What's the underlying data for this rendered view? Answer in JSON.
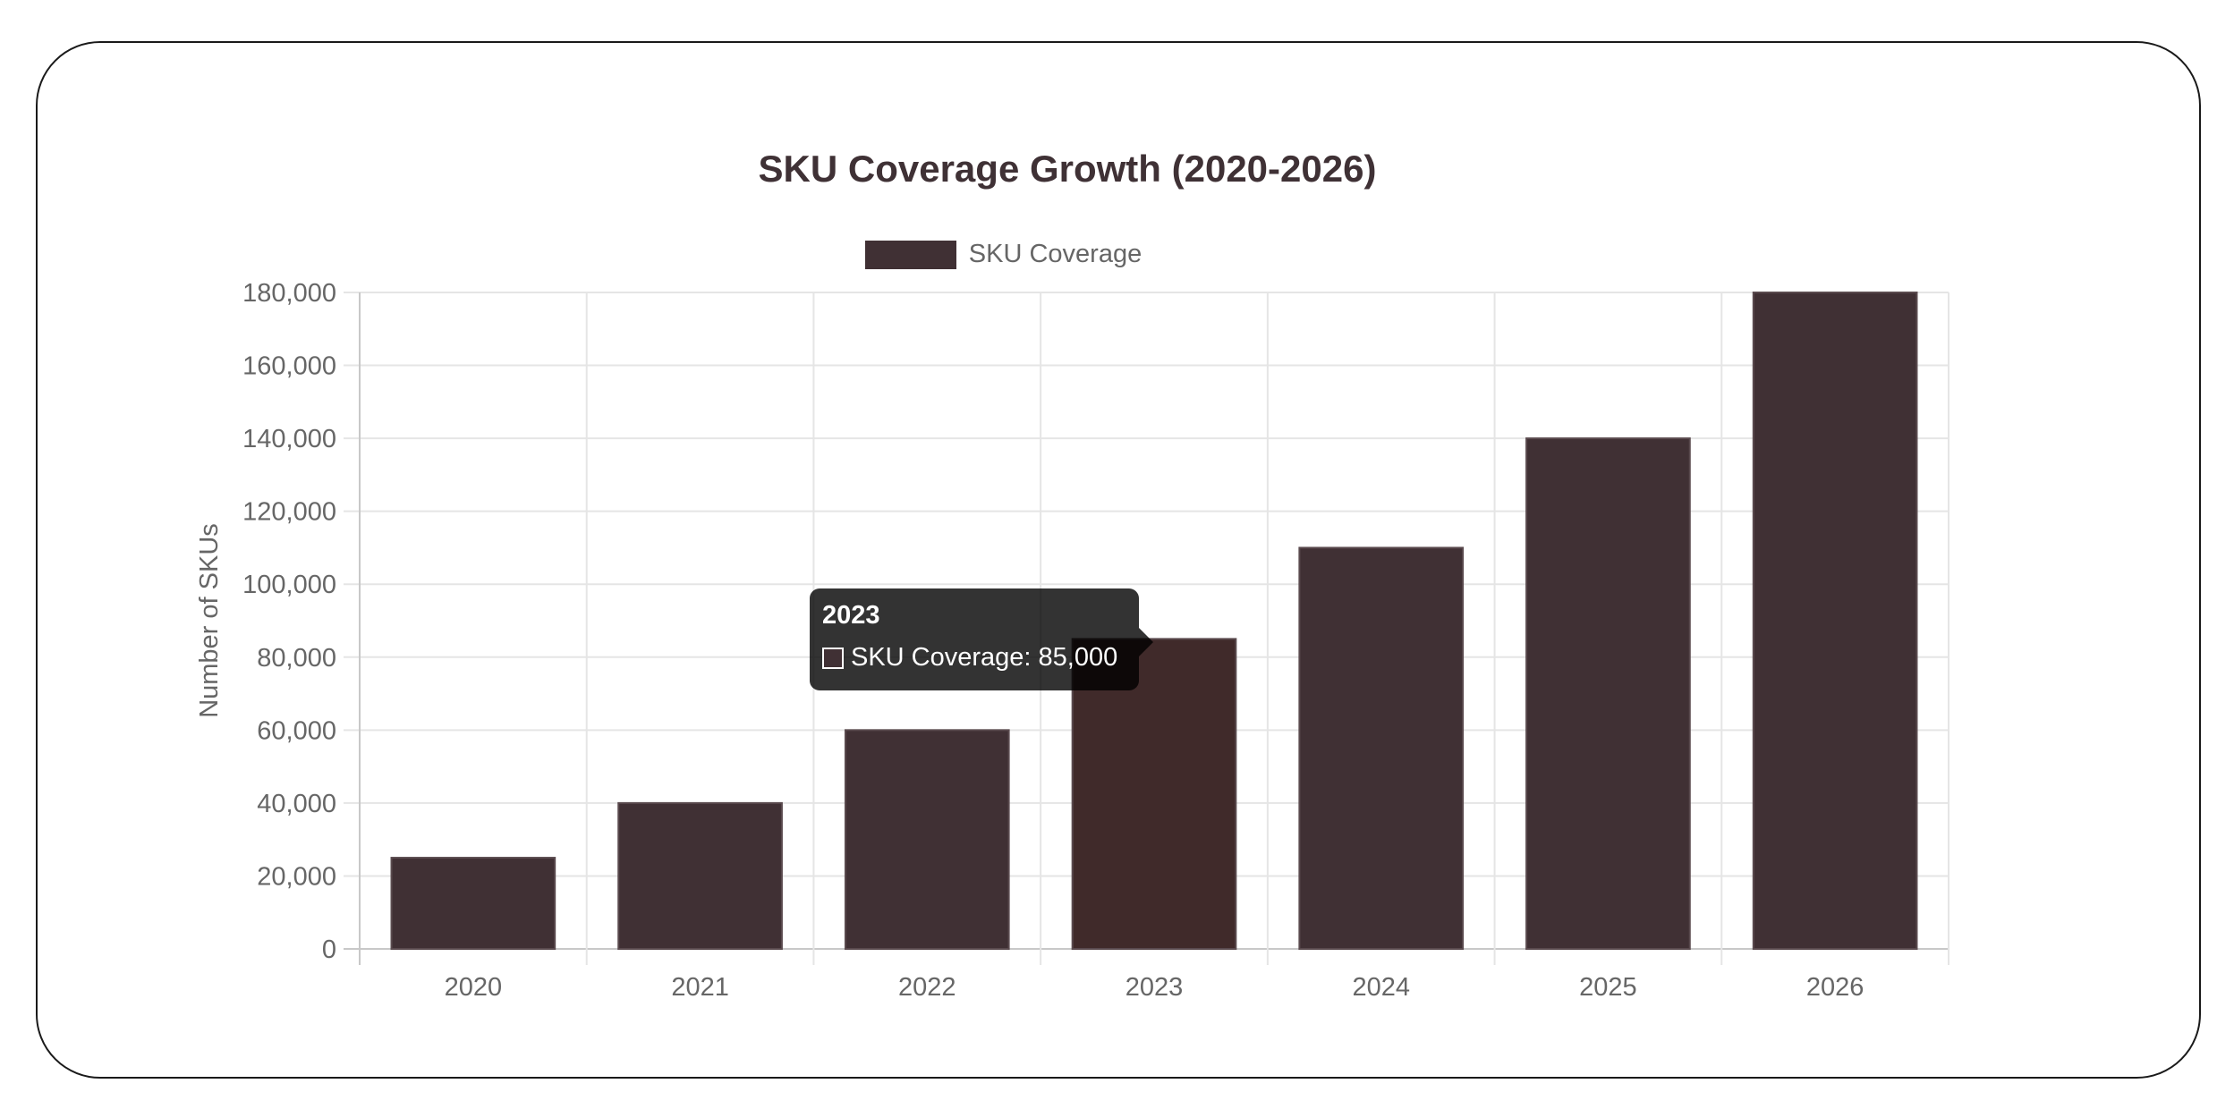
{
  "chart_data": {
    "type": "bar",
    "title": "SKU Coverage Growth (2020-2026)",
    "categories": [
      "2020",
      "2021",
      "2022",
      "2023",
      "2024",
      "2025",
      "2026"
    ],
    "series": [
      {
        "name": "SKU Coverage",
        "values": [
          25000,
          40000,
          60000,
          85000,
          110000,
          140000,
          180000
        ]
      }
    ],
    "xlabel": "",
    "ylabel": "Number of SKUs",
    "ylim": [
      0,
      180000
    ],
    "yticks": [
      "0",
      "20,000",
      "40,000",
      "60,000",
      "80,000",
      "100,000",
      "120,000",
      "140,000",
      "160,000",
      "180,000"
    ],
    "grid": true,
    "legend_position": "top-center",
    "bar_color": "#403034",
    "highlight_color": "#402a2a"
  },
  "tooltip": {
    "title": "2023",
    "label": "SKU Coverage: 85,000"
  }
}
